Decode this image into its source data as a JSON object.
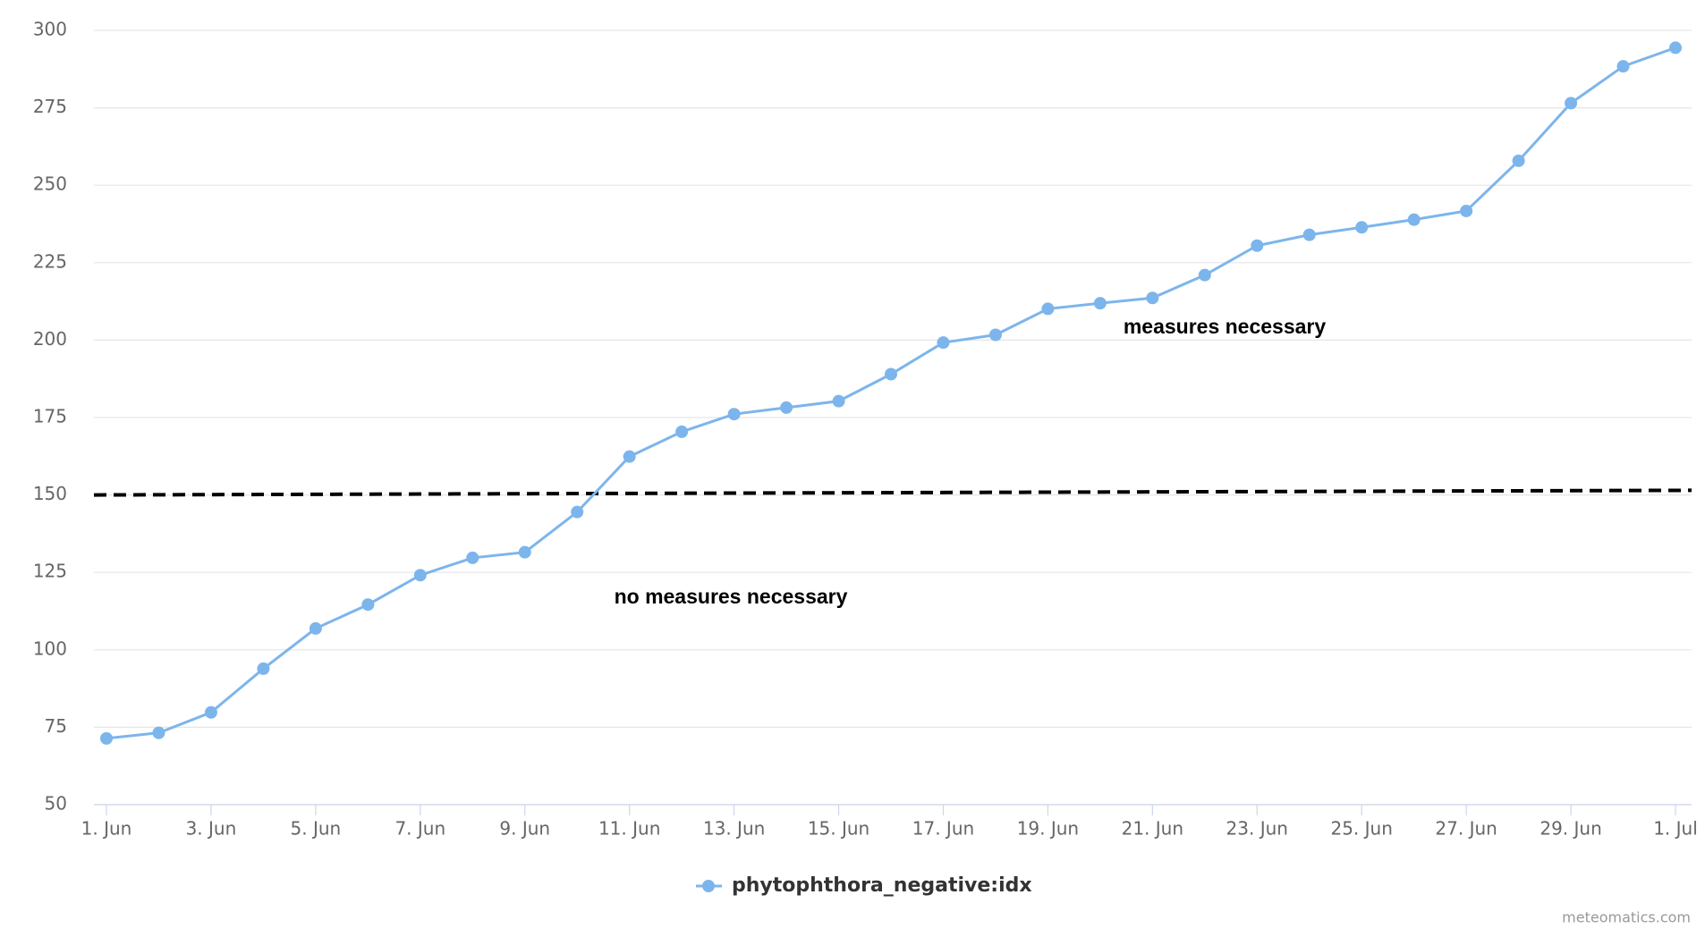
{
  "chart_data": {
    "type": "line",
    "categories": [
      "1. Jun",
      null,
      "3. Jun",
      null,
      "5. Jun",
      null,
      "7. Jun",
      null,
      "9. Jun",
      null,
      "11. Jun",
      null,
      "13. Jun",
      null,
      "15. Jun",
      null,
      "17. Jun",
      null,
      "19. Jun",
      null,
      "21. Jun",
      null,
      "23. Jun",
      null,
      "25. Jun",
      null,
      "27. Jun",
      null,
      "29. Jun",
      null,
      "1. Jul"
    ],
    "series": [
      {
        "name": "phytophthora_negative:idx",
        "color": "#7cb5ec",
        "values": [
          71.4,
          73.2,
          79.8,
          93.9,
          106.9,
          114.6,
          124.1,
          129.7,
          131.5,
          144.5,
          162.4,
          170.4,
          176.1,
          178.2,
          180.3,
          189.0,
          199.2,
          201.7,
          210.1,
          211.9,
          213.6,
          221.0,
          230.5,
          234.0,
          236.4,
          238.9,
          241.7,
          257.9,
          276.5,
          288.4,
          294.4
        ]
      }
    ],
    "threshold": {
      "start": 150,
      "end": 151.5,
      "color": "#000000"
    },
    "annotations": [
      "measures necessary",
      "no measures necessary"
    ],
    "credits": "meteomatics.com",
    "ylim": [
      50,
      300
    ],
    "yticks": [
      50,
      75,
      100,
      125,
      150,
      175,
      200,
      225,
      250,
      275,
      300
    ],
    "grid": true
  }
}
